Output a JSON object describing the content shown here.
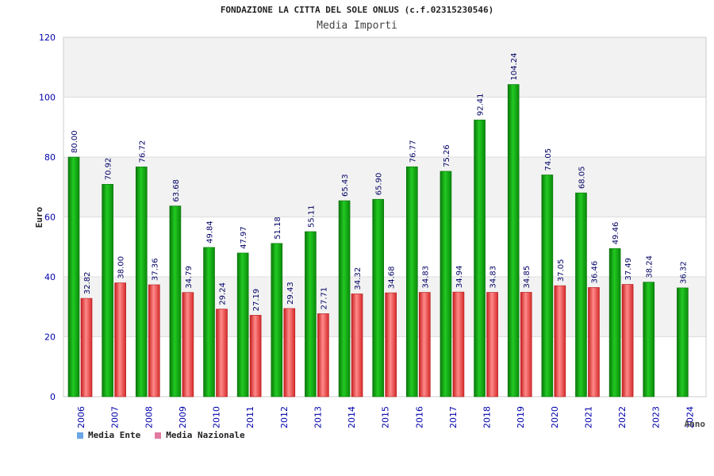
{
  "header": {
    "title": "FONDAZIONE LA CITTA DEL SOLE ONLUS (c.f.02315230546)",
    "subtitle": "Media Importi"
  },
  "legend": [
    {
      "label": "Media Ente",
      "color": "#6aa6e6"
    },
    {
      "label": "Media Nazionale",
      "color": "#e07aa0"
    }
  ],
  "colors": {
    "ente": "#0a9a0a",
    "nazionale": "#e23a3a",
    "axis_text": "#0000aa",
    "grid_band": "#f2f2f2"
  },
  "chart_data": {
    "type": "bar",
    "title": "FONDAZIONE LA CITTA DEL SOLE ONLUS (c.f.02315230546)",
    "subtitle": "Media Importi",
    "xlabel": "Anno",
    "ylabel": "Euro",
    "ylim": [
      0,
      120
    ],
    "yticks": [
      0,
      20,
      40,
      60,
      80,
      100,
      120
    ],
    "categories": [
      "2006",
      "2007",
      "2008",
      "2009",
      "2010",
      "2011",
      "2012",
      "2013",
      "2014",
      "2015",
      "2016",
      "2017",
      "2018",
      "2019",
      "2020",
      "2021",
      "2022",
      "2023",
      "2024"
    ],
    "series": [
      {
        "name": "Media Ente",
        "values": [
          80.0,
          70.92,
          76.72,
          63.68,
          49.84,
          47.97,
          51.18,
          55.11,
          65.43,
          65.9,
          76.77,
          75.26,
          92.41,
          104.24,
          74.05,
          68.05,
          49.46,
          38.24,
          36.32
        ],
        "labels": [
          "80.00",
          "70.92",
          "76.72",
          "63.68",
          "49.84",
          "47.97",
          "51.18",
          "55.11",
          "65.43",
          "65.90",
          "76.77",
          "75.26",
          "92.41",
          "104.24",
          "74.05",
          "68.05",
          "49.46",
          "38.24",
          "36.32"
        ]
      },
      {
        "name": "Media Nazionale",
        "values": [
          32.82,
          38.0,
          37.36,
          34.79,
          29.24,
          27.19,
          29.43,
          27.71,
          34.32,
          34.68,
          34.83,
          34.94,
          34.83,
          34.85,
          37.05,
          36.46,
          37.49,
          null,
          null
        ],
        "labels": [
          "32.82",
          "38.00",
          "37.36",
          "34.79",
          "29.24",
          "27.19",
          "29.43",
          "27.71",
          "34.32",
          "34.68",
          "34.83",
          "34.94",
          "34.83",
          "34.85",
          "37.05",
          "36.46",
          "37.49",
          null,
          null
        ]
      }
    ],
    "grid": true,
    "legend_position": "bottom-left"
  }
}
